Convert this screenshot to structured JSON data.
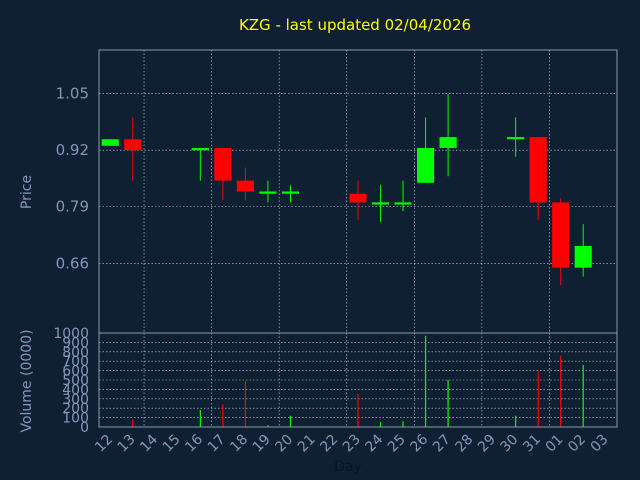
{
  "colors": {
    "background": "#0f2033",
    "plot_border": "#8d9aa8",
    "grid": "#c8d2dc",
    "title": "#ffff00",
    "axis_text": "#7f99b8",
    "up": "#00ff00",
    "down": "#ff0000"
  },
  "chart_data": {
    "type": "candlestick",
    "title": "KZG - last updated 02/04/2026",
    "ylabel": "Price",
    "volume_ylabel": "Volume (0000)",
    "xlabel": "Day",
    "ylim": [
      0.5,
      1.15
    ],
    "yticks": [
      "1.05",
      "0.92",
      "0.79",
      "0.66"
    ],
    "volume_ylim": [
      0,
      1000
    ],
    "volume_yticks": [
      "0",
      "100",
      "200",
      "300",
      "400",
      "500",
      "600",
      "700",
      "800",
      "900",
      "1000"
    ],
    "xticks": [
      "12",
      "13",
      "14",
      "15",
      "16",
      "17",
      "18",
      "19",
      "20",
      "21",
      "22",
      "23",
      "24",
      "25",
      "26",
      "27",
      "28",
      "29",
      "30",
      "31",
      "01",
      "02",
      "03"
    ],
    "candles": [
      {
        "day": "12",
        "open": 0.93,
        "high": 0.945,
        "low": 0.93,
        "close": 0.945,
        "volume": 0
      },
      {
        "day": "13",
        "open": 0.945,
        "high": 0.995,
        "low": 0.85,
        "close": 0.92,
        "volume": 80
      },
      {
        "day": "16",
        "open": 0.92,
        "high": 0.925,
        "low": 0.85,
        "close": 0.925,
        "volume": 180
      },
      {
        "day": "17",
        "open": 0.925,
        "high": 0.925,
        "low": 0.805,
        "close": 0.85,
        "volume": 240
      },
      {
        "day": "18",
        "open": 0.85,
        "high": 0.88,
        "low": 0.805,
        "close": 0.825,
        "volume": 490
      },
      {
        "day": "19",
        "open": 0.82,
        "high": 0.85,
        "low": 0.8,
        "close": 0.825,
        "volume": 20
      },
      {
        "day": "20",
        "open": 0.82,
        "high": 0.84,
        "low": 0.8,
        "close": 0.825,
        "volume": 120
      },
      {
        "day": "23",
        "open": 0.82,
        "high": 0.85,
        "low": 0.76,
        "close": 0.8,
        "volume": 350
      },
      {
        "day": "24",
        "open": 0.795,
        "high": 0.84,
        "low": 0.755,
        "close": 0.8,
        "volume": 50
      },
      {
        "day": "25",
        "open": 0.795,
        "high": 0.85,
        "low": 0.78,
        "close": 0.8,
        "volume": 60
      },
      {
        "day": "26",
        "open": 0.845,
        "high": 0.995,
        "low": 0.845,
        "close": 0.925,
        "volume": 970
      },
      {
        "day": "27",
        "open": 0.925,
        "high": 1.05,
        "low": 0.86,
        "close": 0.95,
        "volume": 500
      },
      {
        "day": "30",
        "open": 0.945,
        "high": 0.995,
        "low": 0.905,
        "close": 0.95,
        "volume": 120
      },
      {
        "day": "31",
        "open": 0.95,
        "high": 0.95,
        "low": 0.76,
        "close": 0.8,
        "volume": 600
      },
      {
        "day": "01",
        "open": 0.8,
        "high": 0.81,
        "low": 0.61,
        "close": 0.65,
        "volume": 760
      },
      {
        "day": "02",
        "open": 0.65,
        "high": 0.75,
        "low": 0.63,
        "close": 0.7,
        "volume": 660
      }
    ]
  }
}
